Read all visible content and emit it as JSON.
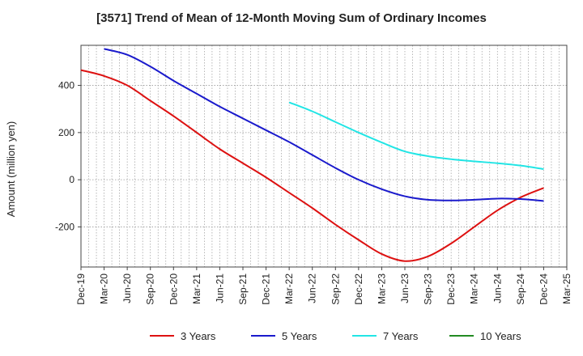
{
  "chart_data": {
    "type": "line",
    "title": "[3571]  Trend of Mean of 12-Month Moving Sum of Ordinary Incomes",
    "xlabel": "",
    "ylabel": "Amount (million yen)",
    "ylim": [
      -370,
      570
    ],
    "yticks": [
      400,
      200,
      0,
      -200
    ],
    "ytick_labels": [
      "400",
      "200",
      "0",
      "-200"
    ],
    "xlim": [
      "Dec-19",
      "Mar-25"
    ],
    "x_tick_labels": [
      "Dec-19",
      "Mar-20",
      "Jun-20",
      "Sep-20",
      "Dec-20",
      "Mar-21",
      "Jun-21",
      "Sep-21",
      "Dec-21",
      "Mar-22",
      "Jun-22",
      "Sep-22",
      "Dec-22",
      "Mar-23",
      "Jun-23",
      "Sep-23",
      "Dec-23",
      "Mar-24",
      "Jun-24",
      "Sep-24",
      "Dec-24",
      "Mar-25"
    ],
    "grid": true,
    "legend_position": "bottom",
    "series": [
      {
        "name": "3 Years",
        "color": "#dd1111",
        "x": [
          "Dec-19",
          "Mar-20",
          "Jun-20",
          "Sep-20",
          "Dec-20",
          "Mar-21",
          "Jun-21",
          "Sep-21",
          "Dec-21",
          "Mar-22",
          "Jun-22",
          "Sep-22",
          "Dec-22",
          "Mar-23",
          "Jun-23",
          "Sep-23",
          "Dec-23",
          "Mar-24",
          "Jun-24",
          "Sep-24",
          "Dec-24"
        ],
        "values": [
          465,
          440,
          400,
          335,
          270,
          200,
          130,
          70,
          10,
          -55,
          -120,
          -190,
          -255,
          -315,
          -345,
          -325,
          -270,
          -200,
          -130,
          -75,
          -35
        ]
      },
      {
        "name": "5 Years",
        "color": "#1a1acc",
        "x": [
          "Mar-20",
          "Jun-20",
          "Sep-20",
          "Dec-20",
          "Mar-21",
          "Jun-21",
          "Sep-21",
          "Dec-21",
          "Mar-22",
          "Jun-22",
          "Sep-22",
          "Dec-22",
          "Mar-23",
          "Jun-23",
          "Sep-23",
          "Dec-23",
          "Mar-24",
          "Jun-24",
          "Sep-24",
          "Dec-24"
        ],
        "values": [
          555,
          530,
          480,
          420,
          365,
          310,
          260,
          210,
          160,
          105,
          50,
          0,
          -40,
          -70,
          -85,
          -88,
          -85,
          -80,
          -82,
          -90
        ]
      },
      {
        "name": "7 Years",
        "color": "#22e5e5",
        "x": [
          "Mar-22",
          "Jun-22",
          "Sep-22",
          "Dec-22",
          "Mar-23",
          "Jun-23",
          "Sep-23",
          "Dec-23",
          "Mar-24",
          "Jun-24",
          "Sep-24",
          "Dec-24"
        ],
        "values": [
          328,
          290,
          245,
          200,
          158,
          120,
          100,
          87,
          78,
          70,
          60,
          45
        ]
      },
      {
        "name": "10 Years",
        "color": "#228b22",
        "x": [],
        "values": []
      }
    ]
  }
}
